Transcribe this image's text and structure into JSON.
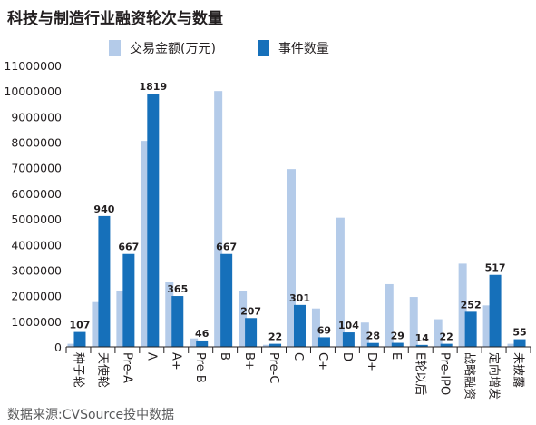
{
  "chart_data": {
    "type": "bar",
    "title": "科技与制造行业融资轮次与数量",
    "source": "数据来源:CVSource投中数据",
    "categories": [
      "种子轮",
      "天使轮",
      "Pre-A",
      "A",
      "A+",
      "Pre-B",
      "B",
      "B+",
      "Pre-C",
      "C",
      "C+",
      "D",
      "D+",
      "E",
      "E轮以后",
      "Pre-IPO",
      "战略融资",
      "定向增发",
      "未披露"
    ],
    "ylim": [
      0,
      11000000
    ],
    "yticks": [
      "0",
      "1000000",
      "2000000",
      "3000000",
      "4000000",
      "5000000",
      "6000000",
      "7000000",
      "8000000",
      "9000000",
      "10000000",
      "11000000"
    ],
    "series": [
      {
        "name": "交易金额(万元)",
        "color": "#b4cbe9",
        "values": [
          120000,
          1750000,
          2200000,
          8050000,
          2550000,
          330000,
          10000000,
          2200000,
          80000,
          6950000,
          1500000,
          5050000,
          950000,
          2450000,
          1950000,
          1080000,
          3250000,
          1620000,
          120000
        ]
      },
      {
        "name": "事件数量",
        "color": "#1670ba",
        "values": [
          107,
          940,
          667,
          1819,
          365,
          46,
          667,
          207,
          22,
          301,
          69,
          104,
          28,
          29,
          14,
          22,
          252,
          517,
          55
        ]
      }
    ],
    "count_scale": 5440
  }
}
